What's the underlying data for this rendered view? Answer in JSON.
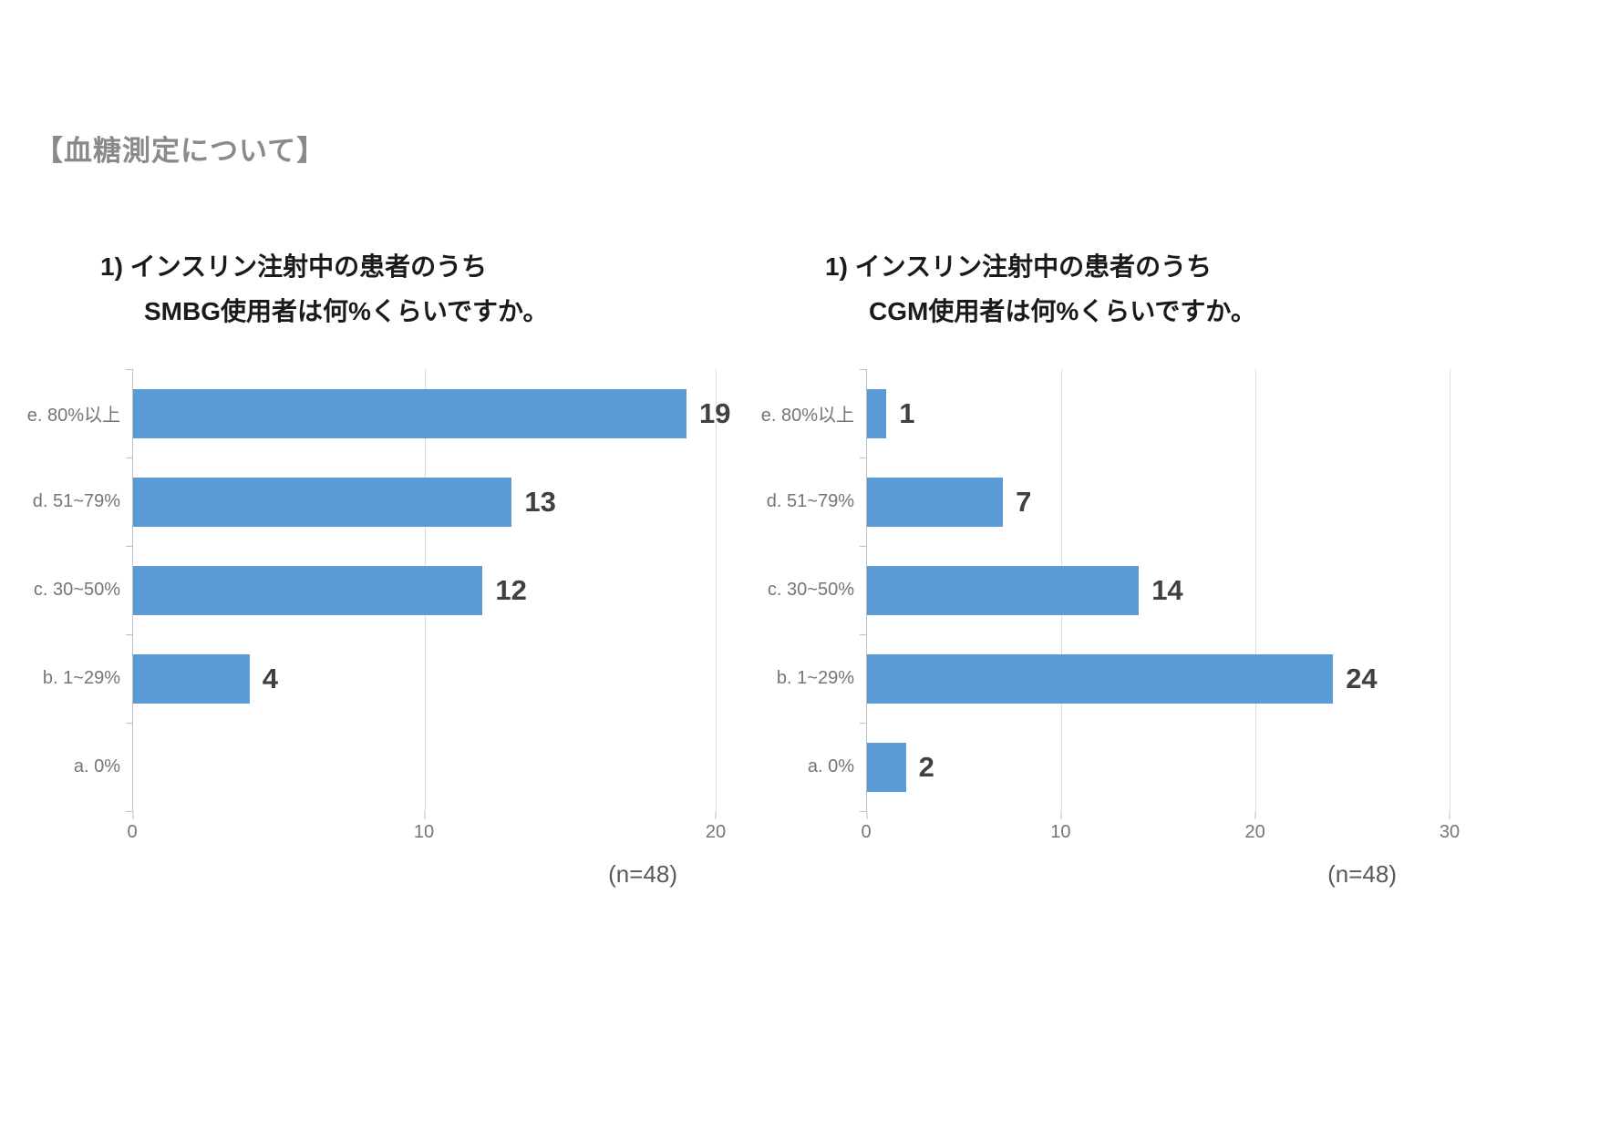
{
  "page": {
    "header": "【血糖測定について】"
  },
  "colors": {
    "bar": "#5b9bd5",
    "value_label": "#404040",
    "axis_label": "#757575",
    "axis_line": "#bfbfbf",
    "gridline": "#dcdcdc",
    "title": "#1a1a1a",
    "header": "#8a8a8a"
  },
  "chart_data": [
    {
      "type": "bar",
      "orientation": "horizontal",
      "title_line1": "1) インスリン注射中の患者のうち",
      "title_line2": "SMBG使用者は何%くらいですか。",
      "categories": [
        "e. 80%以上",
        "d. 51~79%",
        "c. 30~50%",
        "b. 1~29%",
        "a. 0%"
      ],
      "values": [
        19,
        13,
        12,
        4,
        0
      ],
      "xlim": [
        0,
        20
      ],
      "x_ticks": [
        0,
        10,
        20
      ],
      "sample_size_label": "(n=48)",
      "grid": true,
      "legend": false,
      "bar_color": "#5b9bd5"
    },
    {
      "type": "bar",
      "orientation": "horizontal",
      "title_line1": "1) インスリン注射中の患者のうち",
      "title_line2": "CGM使用者は何%くらいですか。",
      "categories": [
        "e. 80%以上",
        "d. 51~79%",
        "c. 30~50%",
        "b. 1~29%",
        "a. 0%"
      ],
      "values": [
        1,
        7,
        14,
        24,
        2
      ],
      "xlim": [
        0,
        30
      ],
      "x_ticks": [
        0,
        10,
        20,
        30
      ],
      "sample_size_label": "(n=48)",
      "grid": true,
      "legend": false,
      "bar_color": "#5b9bd5"
    }
  ]
}
